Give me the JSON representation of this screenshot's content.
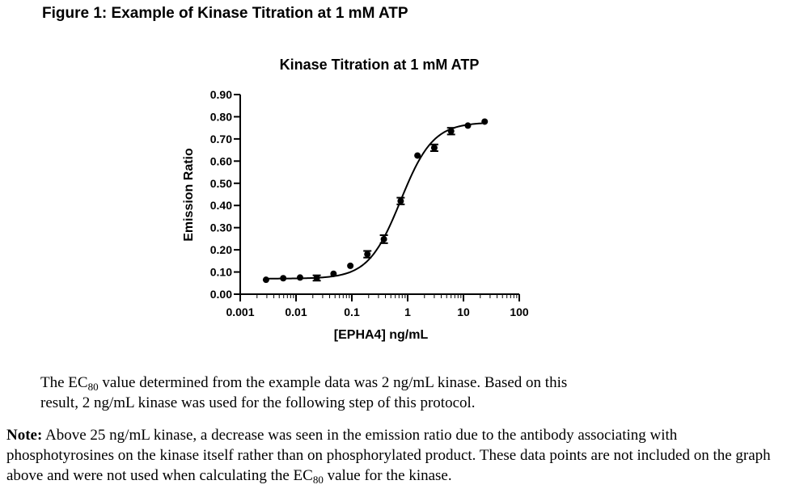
{
  "figure_caption": "Figure 1: Example of Kinase Titration at 1 mM ATP",
  "chart_data": {
    "type": "scatter",
    "title": "Kinase Titration at 1 mM ATP",
    "xlabel": "[EPHA4] ng/mL",
    "ylabel": "Emission Ratio",
    "x_scale": "log",
    "xlim": [
      0.001,
      100
    ],
    "ylim": [
      0,
      0.9
    ],
    "x_ticks": [
      "0.001",
      "0.01",
      "0.1",
      "1",
      "10",
      "100"
    ],
    "y_ticks": [
      "0.00",
      "0.10",
      "0.20",
      "0.30",
      "0.40",
      "0.50",
      "0.60",
      "0.70",
      "0.80",
      "0.90"
    ],
    "series": [
      {
        "x": [
          0.0029,
          0.0059,
          0.0118,
          0.0235,
          0.047,
          0.094,
          0.19,
          0.375,
          0.75,
          1.5,
          3.0,
          6.0,
          12.0,
          24.0
        ],
        "y": [
          0.065,
          0.072,
          0.075,
          0.073,
          0.092,
          0.128,
          0.18,
          0.248,
          0.42,
          0.625,
          0.66,
          0.735,
          0.76,
          0.778
        ],
        "error": [
          0,
          0,
          0,
          0.012,
          0,
          0,
          0.015,
          0.018,
          0.015,
          0,
          0.015,
          0.015,
          0,
          0
        ]
      }
    ],
    "fit_curve": {
      "bottom": 0.07,
      "top": 0.775,
      "ec50": 0.75,
      "hill": 1.5
    },
    "grid": false
  },
  "text": {
    "para_line1_a": "The EC",
    "para_line1_sub": "80",
    "para_line1_b": " value determined from the example data was 2 ng/mL kinase.  Based on this",
    "para_line2": "result, 2 ng/mL kinase was used for the following step of this protocol.",
    "note_label": "Note:",
    "note_body_a": " Above 25 ng/mL kinase, a decrease was seen in the emission ratio due to the antibody associating with phosphotyrosines on the kinase itself rather than on phosphorylated product. These data points are not included on the graph above and were not used when calculating the EC",
    "note_sub": "80",
    "note_body_b": " value for the kinase."
  }
}
